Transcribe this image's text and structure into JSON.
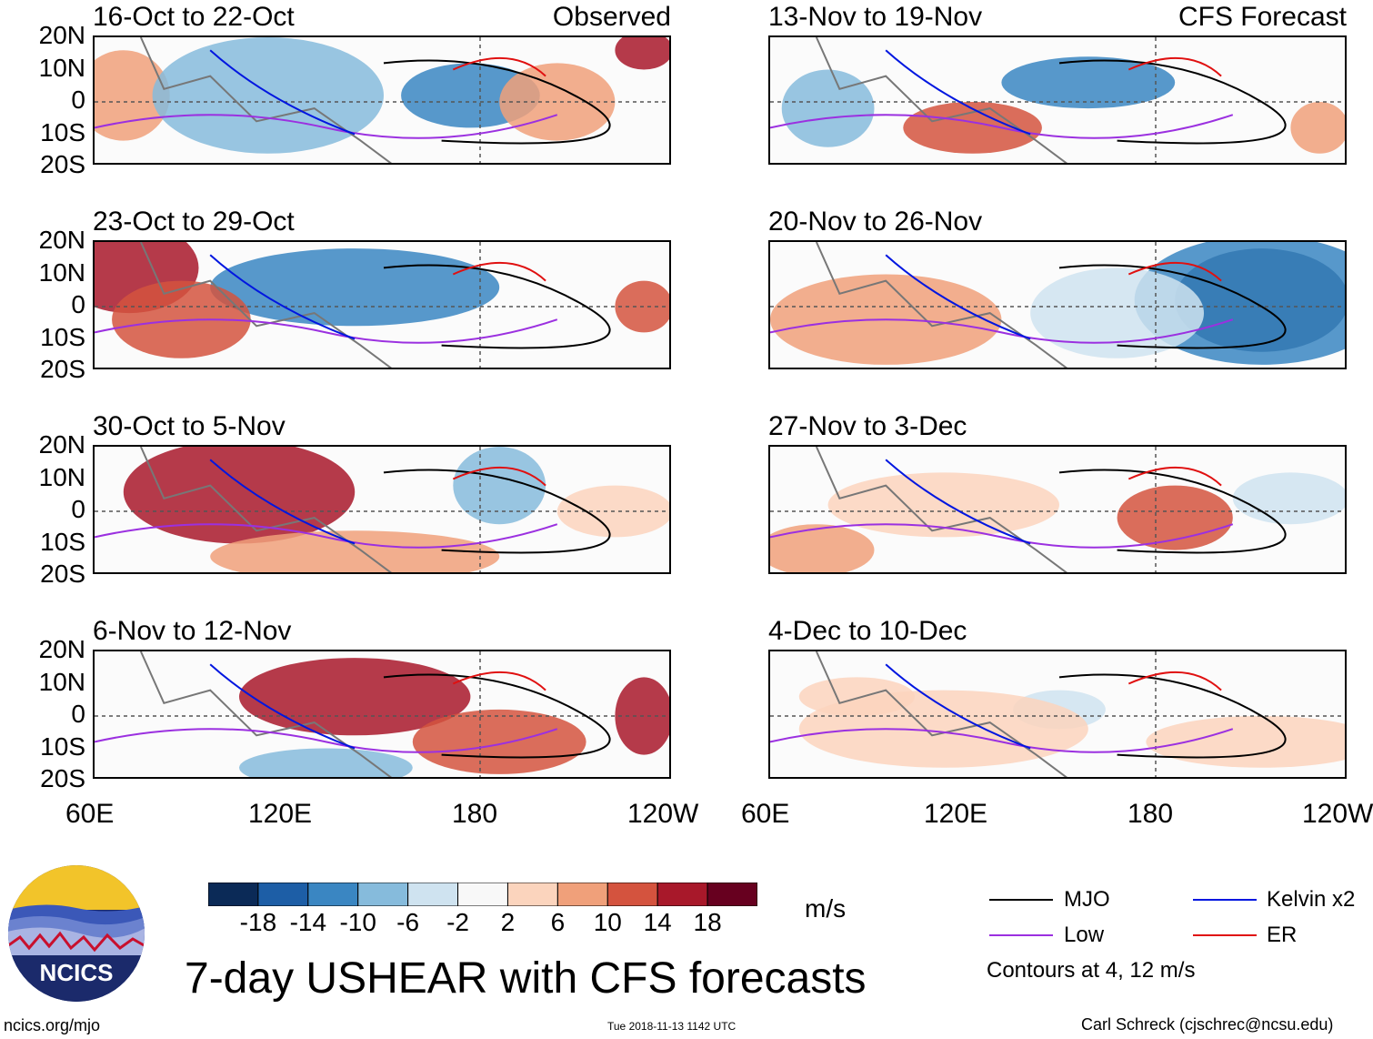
{
  "chart_data": {
    "type": "heatmap",
    "title": "7-day USHEAR with CFS forecasts",
    "units": "m/s",
    "x_tick_labels": [
      "60E",
      "120E",
      "180",
      "120W"
    ],
    "y_tick_labels": [
      "20N",
      "10N",
      "0",
      "10S",
      "20S"
    ],
    "x_range": [
      60,
      240
    ],
    "y_range": [
      -20,
      20
    ],
    "columns": [
      {
        "tag": "Observed",
        "panels": [
          "16-Oct to 22-Oct",
          "23-Oct to 29-Oct",
          "30-Oct to 5-Nov",
          "6-Nov to 12-Nov"
        ]
      },
      {
        "tag": "CFS Forecast",
        "panels": [
          "13-Nov to 19-Nov",
          "20-Nov to 26-Nov",
          "27-Nov to 3-Dec",
          "4-Dec to 10-Dec"
        ]
      }
    ],
    "colorbar": {
      "labels": [
        "-18",
        "-14",
        "-10",
        "-6",
        "-2",
        "2",
        "6",
        "10",
        "14",
        "18"
      ],
      "colors": [
        "#0b2a57",
        "#1d5ea6",
        "#3a86c2",
        "#86bbdc",
        "#cfe3f0",
        "#f8f8f8",
        "#fbd4bd",
        "#f0a07a",
        "#d4533e",
        "#a8182a",
        "#67001f"
      ]
    },
    "legend": [
      {
        "label": "MJO",
        "color": "#000000"
      },
      {
        "label": "Kelvin x2",
        "color": "#0016e0"
      },
      {
        "label": "Low",
        "color": "#9b30e0"
      },
      {
        "label": "ER",
        "color": "#e01010"
      }
    ],
    "contour_note": "Contours at 4, 12 m/s"
  },
  "footer": {
    "logo_text": "NCICS",
    "site": "ncics.org/mjo",
    "timestamp": "Tue 2018-11-13 1142 UTC",
    "author": "Carl Schreck (cjschrec@ncsu.edu)"
  }
}
